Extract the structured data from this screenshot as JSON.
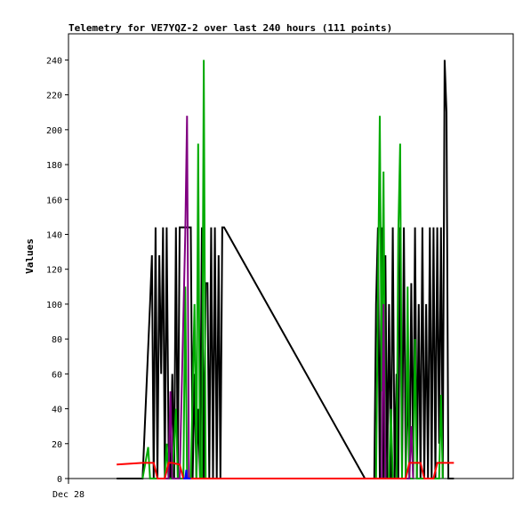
{
  "chart_data": {
    "type": "line",
    "title": "Telemetry for VE7YQZ-2 over last 240 hours (111 points)",
    "xlabel": "",
    "ylabel": "Values",
    "ylim": [
      0,
      255
    ],
    "xlim": [
      0,
      240
    ],
    "yticks": [
      0,
      20,
      40,
      60,
      80,
      100,
      120,
      140,
      160,
      180,
      200,
      220,
      240
    ],
    "xticks": [
      {
        "x": 0,
        "label": "Dec 28"
      }
    ],
    "grid": false,
    "legend": "none",
    "series": [
      {
        "color": "#000000",
        "points": [
          [
            26,
            0
          ],
          [
            40,
            0
          ],
          [
            44,
            100
          ],
          [
            45,
            128
          ],
          [
            46,
            0
          ],
          [
            47,
            144
          ],
          [
            48,
            0
          ],
          [
            49,
            128
          ],
          [
            50,
            60
          ],
          [
            51,
            144
          ],
          [
            52,
            0
          ],
          [
            53,
            144
          ],
          [
            54,
            20
          ],
          [
            55,
            0
          ],
          [
            56,
            60
          ],
          [
            57,
            0
          ],
          [
            58,
            144
          ],
          [
            59,
            0
          ],
          [
            60,
            144
          ],
          [
            62,
            144
          ],
          [
            64,
            144
          ],
          [
            66,
            144
          ],
          [
            67,
            0
          ],
          [
            68,
            60
          ],
          [
            69,
            0
          ],
          [
            70,
            40
          ],
          [
            71,
            0
          ],
          [
            72,
            144
          ],
          [
            73,
            0
          ],
          [
            74,
            112
          ],
          [
            75,
            112
          ],
          [
            76,
            0
          ],
          [
            77,
            144
          ],
          [
            78,
            0
          ],
          [
            79,
            144
          ],
          [
            80,
            0
          ],
          [
            81,
            128
          ],
          [
            82,
            0
          ],
          [
            83,
            144
          ],
          [
            84,
            144
          ],
          [
            160,
            0
          ],
          [
            165,
            0
          ],
          [
            166,
            100
          ],
          [
            167,
            144
          ],
          [
            168,
            0
          ],
          [
            169,
            144
          ],
          [
            170,
            0
          ],
          [
            171,
            128
          ],
          [
            172,
            0
          ],
          [
            173,
            100
          ],
          [
            174,
            0
          ],
          [
            175,
            144
          ],
          [
            176,
            0
          ],
          [
            177,
            60
          ],
          [
            178,
            0
          ],
          [
            179,
            144
          ],
          [
            180,
            0
          ],
          [
            181,
            144
          ],
          [
            182,
            0
          ],
          [
            183,
            60
          ],
          [
            184,
            0
          ],
          [
            185,
            112
          ],
          [
            186,
            0
          ],
          [
            187,
            144
          ],
          [
            188,
            0
          ],
          [
            189,
            100
          ],
          [
            190,
            0
          ],
          [
            191,
            144
          ],
          [
            192,
            0
          ],
          [
            193,
            100
          ],
          [
            194,
            0
          ],
          [
            195,
            144
          ],
          [
            196,
            0
          ],
          [
            197,
            144
          ],
          [
            198,
            0
          ],
          [
            199,
            144
          ],
          [
            200,
            20
          ],
          [
            201,
            144
          ],
          [
            202,
            0
          ],
          [
            203,
            240
          ],
          [
            204,
            210
          ],
          [
            205,
            0
          ],
          [
            208,
            0
          ]
        ]
      },
      {
        "color": "#00aa00",
        "points": [
          [
            40,
            0
          ],
          [
            43,
            18
          ],
          [
            44,
            0
          ],
          [
            52,
            0
          ],
          [
            53,
            20
          ],
          [
            54,
            0
          ],
          [
            56,
            0
          ],
          [
            58,
            40
          ],
          [
            59,
            0
          ],
          [
            62,
            0
          ],
          [
            63,
            110
          ],
          [
            64,
            0
          ],
          [
            66,
            0
          ],
          [
            68,
            100
          ],
          [
            69,
            0
          ],
          [
            70,
            192
          ],
          [
            71,
            0
          ],
          [
            72,
            0
          ],
          [
            73,
            240
          ],
          [
            74,
            0
          ],
          [
            76,
            0
          ],
          [
            166,
            0
          ],
          [
            168,
            208
          ],
          [
            169,
            50
          ],
          [
            170,
            176
          ],
          [
            171,
            0
          ],
          [
            173,
            0
          ],
          [
            174,
            40
          ],
          [
            175,
            0
          ],
          [
            177,
            0
          ],
          [
            178,
            140
          ],
          [
            179,
            192
          ],
          [
            180,
            0
          ],
          [
            182,
            0
          ],
          [
            183,
            110
          ],
          [
            184,
            0
          ],
          [
            186,
            0
          ],
          [
            187,
            80
          ],
          [
            188,
            0
          ],
          [
            200,
            0
          ],
          [
            201,
            48
          ],
          [
            202,
            0
          ]
        ]
      },
      {
        "color": "#800080",
        "points": [
          [
            50,
            0
          ],
          [
            54,
            0
          ],
          [
            55,
            50
          ],
          [
            56,
            0
          ],
          [
            60,
            0
          ],
          [
            63,
            140
          ],
          [
            64,
            208
          ],
          [
            65,
            0
          ],
          [
            66,
            0
          ],
          [
            169,
            0
          ],
          [
            170,
            100
          ],
          [
            171,
            0
          ],
          [
            184,
            0
          ],
          [
            185,
            30
          ],
          [
            186,
            0
          ]
        ]
      },
      {
        "color": "#ff0000",
        "points": [
          [
            26,
            8
          ],
          [
            40,
            9
          ],
          [
            44,
            9
          ],
          [
            46,
            9
          ],
          [
            48,
            0
          ],
          [
            52,
            0
          ],
          [
            54,
            9
          ],
          [
            56,
            9
          ],
          [
            60,
            8
          ],
          [
            62,
            0
          ],
          [
            182,
            0
          ],
          [
            184,
            9
          ],
          [
            190,
            9
          ],
          [
            192,
            0
          ],
          [
            197,
            0
          ],
          [
            199,
            9
          ],
          [
            208,
            9
          ]
        ]
      },
      {
        "color": "#0000ff",
        "points": [
          [
            62,
            0
          ],
          [
            63,
            0
          ],
          [
            63.6,
            5
          ],
          [
            64,
            0
          ],
          [
            66,
            0
          ]
        ]
      }
    ]
  }
}
